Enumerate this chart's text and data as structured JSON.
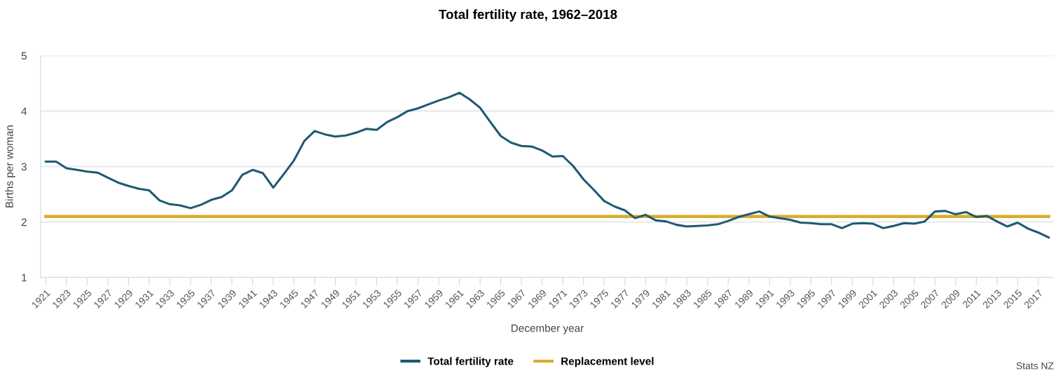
{
  "chart_data": {
    "type": "line",
    "title": "Total fertility rate, 1962–2018",
    "xlabel": "December year",
    "ylabel": "Births per woman",
    "categories": [
      "1921",
      null,
      "1923",
      null,
      "1925",
      null,
      "1927",
      null,
      "1929",
      null,
      "1931",
      null,
      "1933",
      null,
      "1935",
      null,
      "1937",
      null,
      "1939",
      null,
      "1941",
      null,
      "1943",
      null,
      "1945",
      null,
      "1947",
      null,
      "1949",
      null,
      "1951",
      null,
      "1953",
      null,
      "1955",
      null,
      "1957",
      null,
      "1959",
      null,
      "1961",
      null,
      "1963",
      null,
      "1965",
      null,
      "1967",
      null,
      "1969",
      null,
      "1971",
      null,
      "1973",
      null,
      "1975",
      null,
      "1977",
      null,
      "1979",
      null,
      "1981",
      null,
      "1983",
      null,
      "1985",
      null,
      "1987",
      null,
      "1989",
      null,
      "1991",
      null,
      "1993",
      null,
      "1995",
      null,
      "1997",
      null,
      "1999",
      null,
      "2001",
      null,
      "2003",
      null,
      "2005",
      null,
      "2007",
      null,
      "2009",
      null,
      "2011",
      null,
      "2013",
      null,
      "2015",
      null,
      "2017",
      null
    ],
    "series": [
      {
        "name": "Total fertility rate",
        "color": "#1e5a72",
        "values": [
          3.09,
          3.09,
          2.97,
          2.94,
          2.91,
          2.89,
          2.8,
          2.71,
          2.65,
          2.6,
          2.57,
          2.39,
          2.32,
          2.3,
          2.25,
          2.31,
          2.4,
          2.45,
          2.57,
          2.85,
          2.94,
          2.88,
          2.62,
          2.86,
          3.11,
          3.46,
          3.64,
          3.58,
          3.54,
          3.56,
          3.61,
          3.68,
          3.66,
          3.8,
          3.89,
          4.0,
          4.05,
          4.12,
          4.19,
          4.25,
          4.33,
          4.21,
          4.06,
          3.8,
          3.55,
          3.43,
          3.37,
          3.36,
          3.29,
          3.18,
          3.19,
          3.01,
          2.77,
          2.58,
          2.38,
          2.28,
          2.21,
          2.07,
          2.13,
          2.03,
          2.01,
          1.95,
          1.92,
          1.93,
          1.94,
          1.96,
          2.02,
          2.09,
          2.14,
          2.19,
          2.1,
          2.07,
          2.04,
          1.99,
          1.98,
          1.96,
          1.96,
          1.89,
          1.97,
          1.98,
          1.97,
          1.89,
          1.93,
          1.98,
          1.97,
          2.01,
          2.19,
          2.2,
          2.14,
          2.18,
          2.09,
          2.11,
          2.01,
          1.92,
          1.99,
          1.88,
          1.81,
          1.72
        ]
      },
      {
        "name": "Replacement level",
        "color": "#d9ad2a",
        "values": [
          2.1,
          2.1,
          2.1,
          2.1,
          2.1,
          2.1,
          2.1,
          2.1,
          2.1,
          2.1,
          2.1,
          2.1,
          2.1,
          2.1,
          2.1,
          2.1,
          2.1,
          2.1,
          2.1,
          2.1,
          2.1,
          2.1,
          2.1,
          2.1,
          2.1,
          2.1,
          2.1,
          2.1,
          2.1,
          2.1,
          2.1,
          2.1,
          2.1,
          2.1,
          2.1,
          2.1,
          2.1,
          2.1,
          2.1,
          2.1,
          2.1,
          2.1,
          2.1,
          2.1,
          2.1,
          2.1,
          2.1,
          2.1,
          2.1,
          2.1,
          2.1,
          2.1,
          2.1,
          2.1,
          2.1,
          2.1,
          2.1,
          2.1,
          2.1,
          2.1,
          2.1,
          2.1,
          2.1,
          2.1,
          2.1,
          2.1,
          2.1,
          2.1,
          2.1,
          2.1,
          2.1,
          2.1,
          2.1,
          2.1,
          2.1,
          2.1,
          2.1,
          2.1,
          2.1,
          2.1,
          2.1,
          2.1,
          2.1,
          2.1,
          2.1,
          2.1,
          2.1,
          2.1,
          2.1,
          2.1,
          2.1,
          2.1,
          2.1,
          2.1,
          2.1,
          2.1,
          2.1,
          2.1
        ]
      }
    ],
    "ylim": [
      1,
      5
    ],
    "yticks": [
      1,
      2,
      3,
      4,
      5
    ],
    "grid": "y",
    "legend": "bottom",
    "marker": "none",
    "line_style": "solid",
    "annotations": [
      "Stats NZ"
    ]
  }
}
